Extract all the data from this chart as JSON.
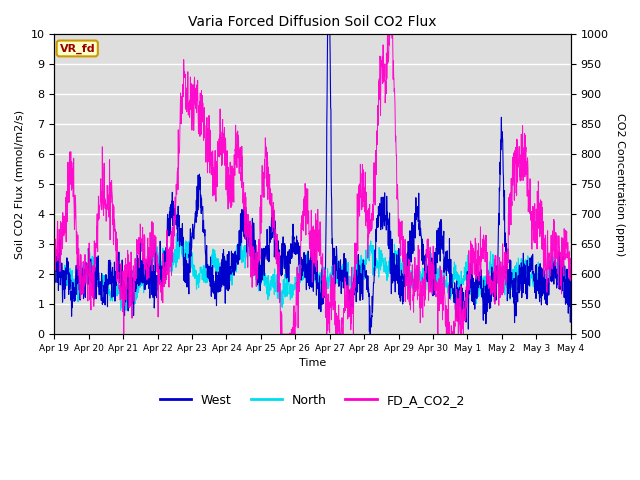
{
  "title": "Varia Forced Diffusion Soil CO2 Flux",
  "ylabel_left": "Soil CO2 Flux (mmol/m2/s)",
  "ylabel_right": "CO2 Concentration (ppm)",
  "xlabel": "Time",
  "ylim_left": [
    0.0,
    10.0
  ],
  "ylim_right": [
    500,
    1000
  ],
  "yticks_left": [
    0.0,
    1.0,
    2.0,
    3.0,
    4.0,
    5.0,
    6.0,
    7.0,
    8.0,
    9.0,
    10.0
  ],
  "yticks_right": [
    500,
    550,
    600,
    650,
    700,
    750,
    800,
    850,
    900,
    950,
    1000
  ],
  "xtick_labels": [
    "Apr 19",
    "Apr 20",
    "Apr 21",
    "Apr 22",
    "Apr 23",
    "Apr 24",
    "Apr 25",
    "Apr 26",
    "Apr 27",
    "Apr 28",
    "Apr 29",
    "Apr 30",
    "May 1",
    "May 2",
    "May 3",
    "May 4"
  ],
  "color_west": "#0000cc",
  "color_north": "#00ddee",
  "color_fd": "#ff00cc",
  "vr_fd_label": "VR_fd",
  "vr_fd_bg": "#ffffcc",
  "vr_fd_border": "#cc9900",
  "vr_fd_text_color": "#990000",
  "legend_labels": [
    "West",
    "North",
    "FD_A_CO2_2"
  ],
  "bg_color": "#dedede",
  "grid_color": "#ffffff",
  "n_points": 2000,
  "fig_width": 6.4,
  "fig_height": 4.8,
  "dpi": 100
}
